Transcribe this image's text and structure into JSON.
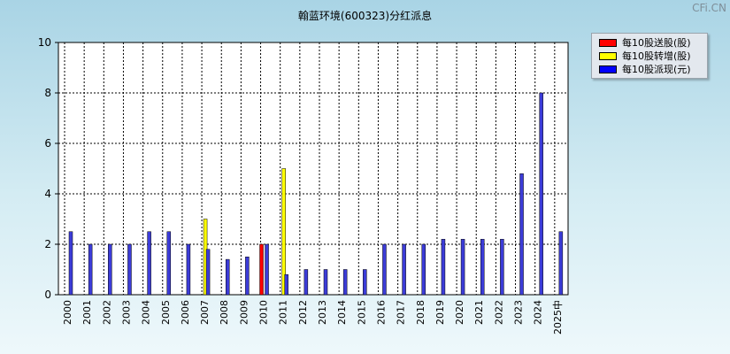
{
  "watermark": "CFi.CN",
  "chart_data": {
    "type": "bar",
    "title": "翰蓝环境(600323)分红派息",
    "categories": [
      "2000",
      "2001",
      "2002",
      "2003",
      "2004",
      "2005",
      "2006",
      "2007",
      "2008",
      "2009",
      "2010",
      "2011",
      "2012",
      "2013",
      "2014",
      "2015",
      "2016",
      "2017",
      "2018",
      "2019",
      "2020",
      "2021",
      "2022",
      "2023",
      "2024",
      "2025中"
    ],
    "series": [
      {
        "name": "每10股送股(股)",
        "color": "#ff0000",
        "values": [
          0,
          0,
          0,
          0,
          0,
          0,
          0,
          0,
          0,
          0,
          2,
          0,
          0,
          0,
          0,
          0,
          0,
          0,
          0,
          0,
          0,
          0,
          0,
          0,
          0,
          0
        ]
      },
      {
        "name": "每10股转增(股)",
        "color": "#ffff00",
        "values": [
          0,
          0,
          0,
          0,
          0,
          0,
          0,
          3,
          0,
          0,
          0,
          5,
          0,
          0,
          0,
          0,
          0,
          0,
          0,
          0,
          0,
          0,
          0,
          0,
          0,
          0
        ]
      },
      {
        "name": "每10股派现(元)",
        "color": "#3c3cd8",
        "values": [
          2.5,
          2,
          2,
          2,
          2.5,
          2.5,
          2,
          1.8,
          1.4,
          1.5,
          2,
          0.8,
          1,
          1,
          1,
          1,
          2,
          2,
          2,
          2.2,
          2.2,
          2.2,
          2.2,
          4.8,
          8,
          2.5
        ]
      }
    ],
    "yticks": [
      0,
      2,
      4,
      6,
      8,
      10
    ],
    "ylim": [
      0,
      10
    ],
    "grid": true,
    "legend_position": "top-right"
  }
}
